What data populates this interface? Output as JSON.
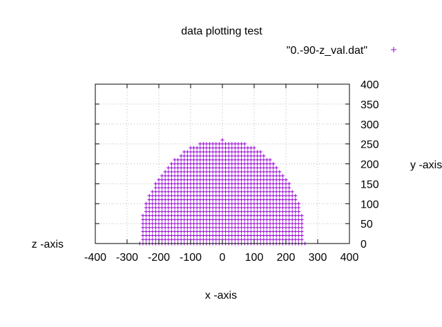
{
  "chart_data": {
    "type": "scatter",
    "title": "data plotting test",
    "xlabel": "x -axis",
    "ylabel": "y -axis",
    "zlabel": "z -axis",
    "xlim": [
      -400,
      400
    ],
    "ylim": [
      0,
      400
    ],
    "xticks": [
      "-400",
      "-300",
      "-200",
      "-100",
      "0",
      "100",
      "200",
      "300",
      "400"
    ],
    "yticks": [
      "0",
      "50",
      "100",
      "150",
      "200",
      "250",
      "300",
      "350",
      "400"
    ],
    "grid": true,
    "legend_position": "top-right",
    "series": [
      {
        "name": "\"0.-90-z_val.dat\"",
        "color": "#9400d3",
        "marker": "plus",
        "shape": "filled half-disc",
        "radius": 260,
        "center_x": 0
      }
    ]
  }
}
